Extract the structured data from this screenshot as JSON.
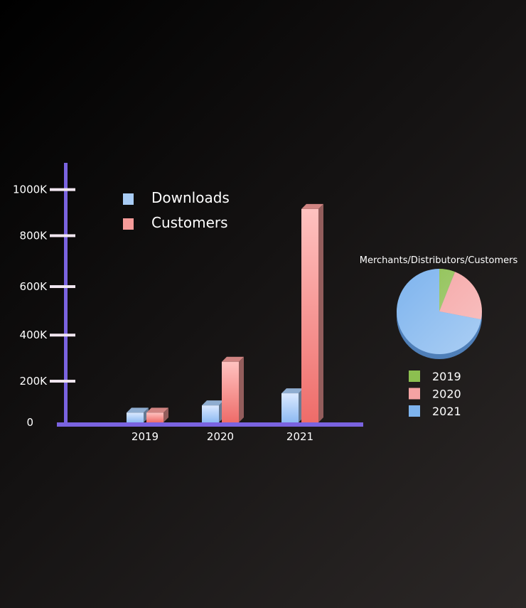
{
  "chart_data": [
    {
      "type": "bar",
      "categories": [
        "2019",
        "2020",
        "2021"
      ],
      "series": [
        {
          "name": "Downloads",
          "values": [
            40,
            70,
            120
          ]
        },
        {
          "name": "Customers",
          "values": [
            40,
            250,
            880
          ]
        }
      ],
      "y_ticks": [
        "0",
        "200K",
        "400K",
        "600K",
        "800K",
        "1000K"
      ],
      "y_tick_values": [
        0,
        170,
        360,
        560,
        770,
        960
      ],
      "ylim": [
        0,
        1000
      ],
      "colors": {
        "Downloads": "#a8ccf5",
        "Customers": "#f59b99",
        "axis": "#7a63e0",
        "tick": "#f1e6f0"
      },
      "legend": "top-left",
      "grid": false
    },
    {
      "type": "pie",
      "title": "Merchants/Distributors/Customers",
      "labels": [
        "2019",
        "2020",
        "2021"
      ],
      "values": [
        6,
        22,
        72
      ],
      "colors": [
        "#8cbf50",
        "#f5a3a3",
        "#7eb4ee"
      ],
      "legend": "bottom"
    }
  ]
}
